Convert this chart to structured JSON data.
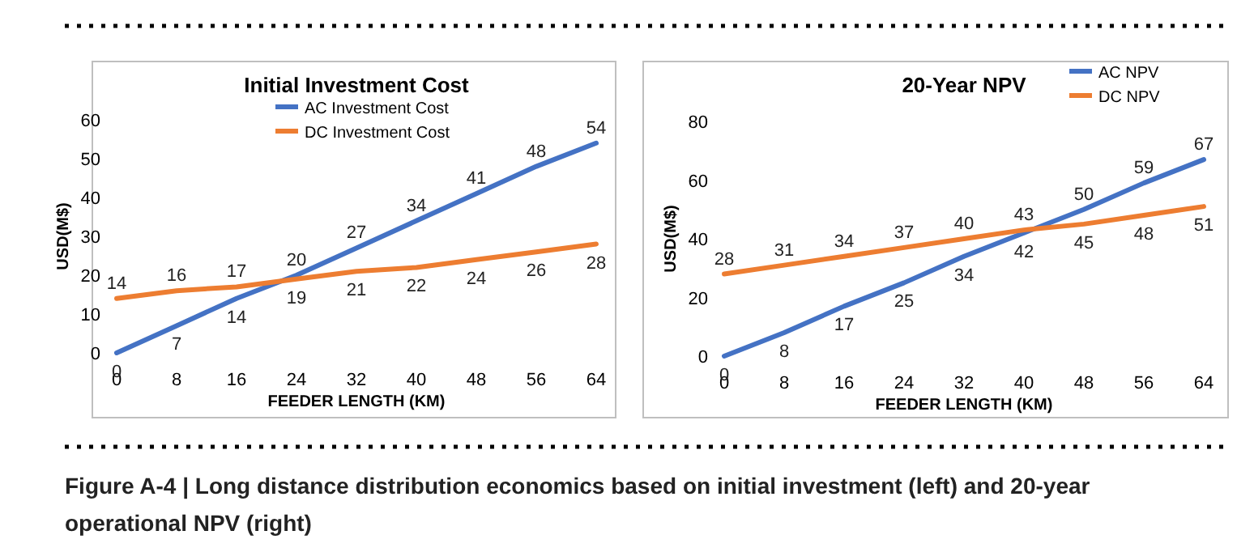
{
  "chart_data": [
    {
      "type": "line",
      "title": "Initial Investment Cost",
      "xlabel": "FEEDER LENGTH (KM)",
      "ylabel": "USD(M$)",
      "x": [
        0,
        8,
        16,
        24,
        32,
        40,
        48,
        56,
        64
      ],
      "xlim": [
        0,
        64
      ],
      "xticks": [
        0,
        8,
        16,
        24,
        32,
        40,
        48,
        56,
        64
      ],
      "ylim": [
        0,
        60
      ],
      "yticks": [
        0,
        10,
        20,
        30,
        40,
        50,
        60
      ],
      "legend": "top right",
      "data_labels": true,
      "marker": "none",
      "line_style": "solid",
      "series": [
        {
          "name": "AC Investment Cost",
          "color": "#4472c4",
          "values": [
            0,
            7,
            14,
            20,
            27,
            34,
            41,
            48,
            54
          ]
        },
        {
          "name": "DC Investment Cost",
          "color": "#ed7d31",
          "values": [
            14,
            16,
            17,
            19,
            21,
            22,
            24,
            26,
            28
          ]
        }
      ]
    },
    {
      "type": "line",
      "title": "20-Year NPV",
      "xlabel": "FEEDER LENGTH (KM)",
      "ylabel": "USD(M$)",
      "x": [
        0,
        8,
        16,
        24,
        32,
        40,
        48,
        56,
        64
      ],
      "xlim": [
        0,
        64
      ],
      "xticks": [
        0,
        8,
        16,
        24,
        32,
        40,
        48,
        56,
        64
      ],
      "ylim": [
        0,
        80
      ],
      "yticks": [
        0,
        20,
        40,
        60,
        80
      ],
      "legend": "top right",
      "data_labels": true,
      "marker": "none",
      "line_style": "solid",
      "series": [
        {
          "name": "AC NPV",
          "color": "#4472c4",
          "values": [
            0,
            8,
            17,
            25,
            34,
            42,
            50,
            59,
            67
          ]
        },
        {
          "name": "DC NPV",
          "color": "#ed7d31",
          "values": [
            28,
            31,
            34,
            37,
            40,
            43,
            45,
            48,
            51
          ]
        }
      ],
      "annotations": [
        "Figure A-4 | Long distance distribution economics based on initial investment (left) and 20-year operational NPV (right)"
      ]
    }
  ]
}
